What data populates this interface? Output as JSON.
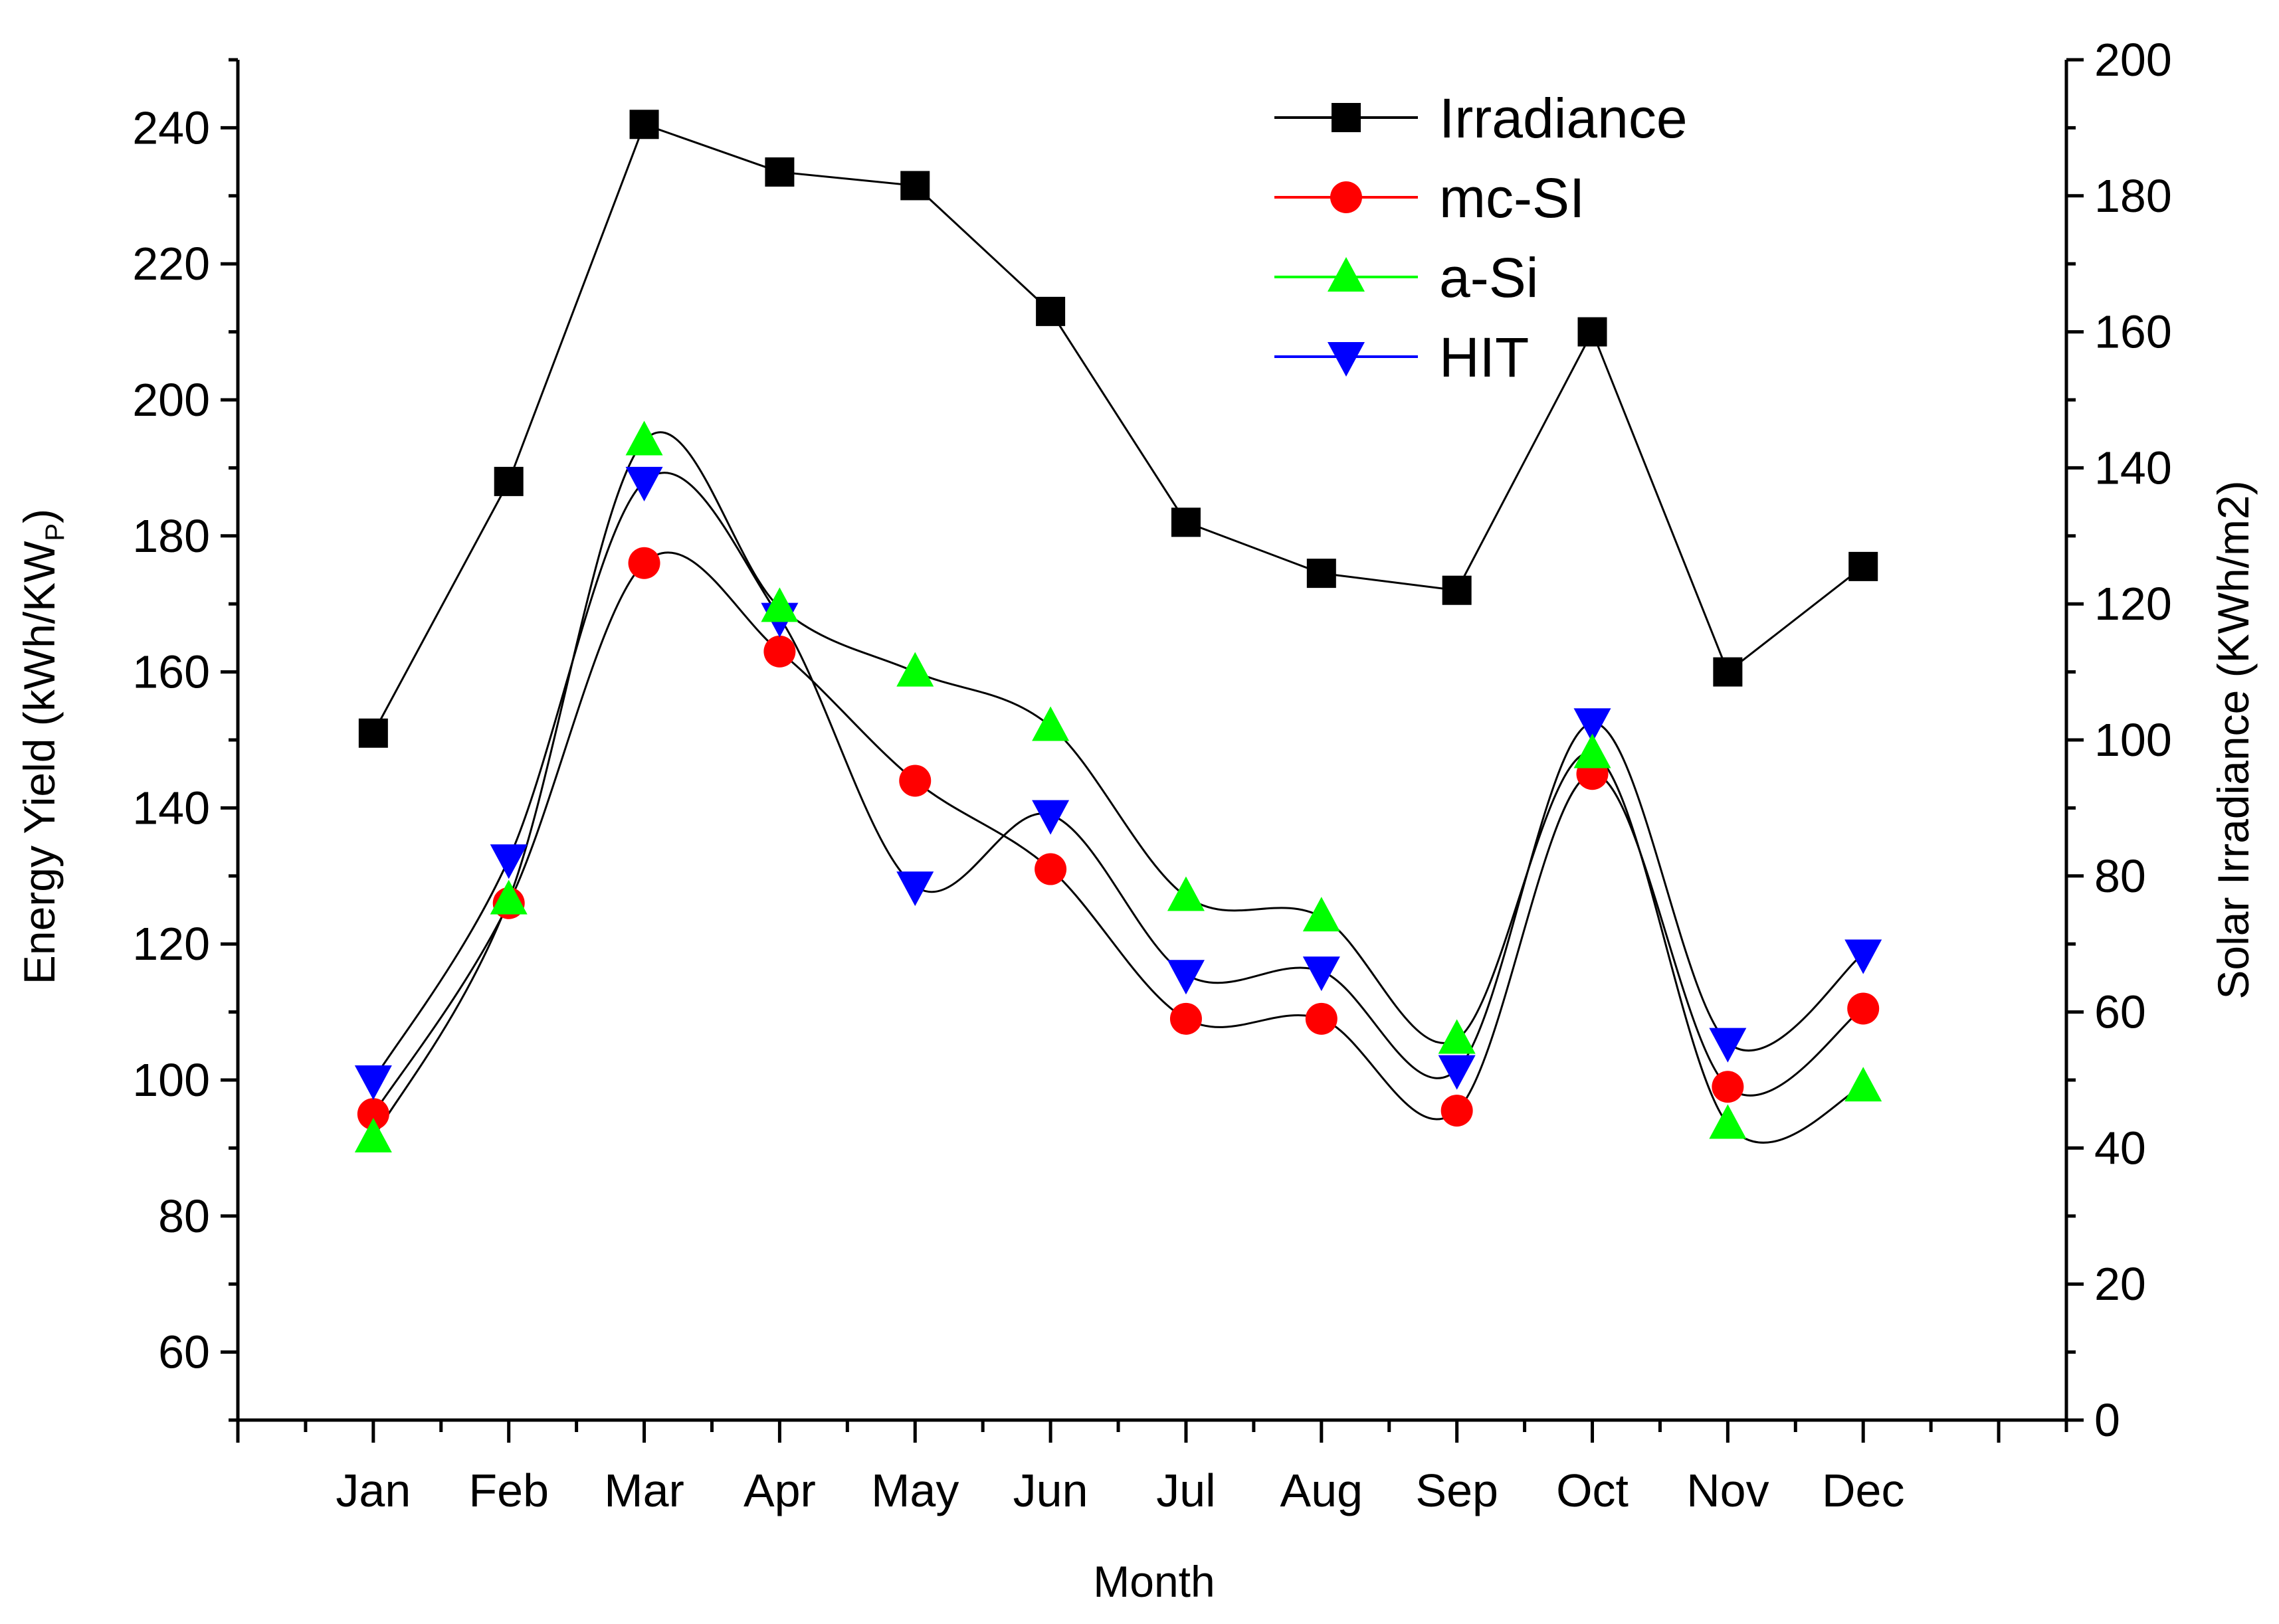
{
  "chart_data": {
    "type": "line",
    "title": "",
    "xlabel": "Month",
    "ylabel": "Energy Yield (kWh/KW",
    "ylabel_subscript": "P",
    "ylabel_close": ")",
    "y2label": "Solar Irradiance (KWh/m2)",
    "categories": [
      "Jan",
      "Feb",
      "Mar",
      "Apr",
      "May",
      "Jun",
      "Jul",
      "Aug",
      "Sep",
      "Oct",
      "Nov",
      "Dec"
    ],
    "ylim": [
      50,
      250
    ],
    "y2lim": [
      0,
      200
    ],
    "yticks": [
      60,
      80,
      100,
      120,
      140,
      160,
      180,
      200,
      220,
      240
    ],
    "y2ticks": [
      0,
      20,
      40,
      60,
      80,
      100,
      120,
      140,
      160,
      180,
      200
    ],
    "series": [
      {
        "name": "Irradiance",
        "axis": "right",
        "marker": "square",
        "color": "#000000",
        "curve": "straight",
        "values": [
          101,
          138,
          190.5,
          183.5,
          181.5,
          163,
          132,
          124.5,
          122,
          160,
          110,
          125.5
        ]
      },
      {
        "name": "mc-SI",
        "axis": "left",
        "marker": "circle",
        "color": "#ff0000",
        "curve": "smooth",
        "values": [
          95,
          126,
          176,
          163,
          144,
          131,
          109,
          109,
          95.5,
          145,
          99,
          110.5
        ]
      },
      {
        "name": "a-Si",
        "axis": "left",
        "marker": "triangle-up",
        "color": "#00ff00",
        "curve": "smooth",
        "values": [
          91.5,
          126.5,
          194,
          169.5,
          160,
          152,
          127,
          124,
          106,
          148,
          93.5,
          99
        ]
      },
      {
        "name": "HIT",
        "axis": "left",
        "marker": "triangle-down",
        "color": "#0000ff",
        "curve": "smooth",
        "values": [
          100,
          132.5,
          188,
          168,
          128.5,
          139,
          115.5,
          116,
          101.5,
          152.5,
          105.5,
          118.5
        ]
      }
    ],
    "legend": {
      "position": "top-right",
      "entries": [
        "Irradiance",
        "mc-SI",
        "a-Si",
        "HIT"
      ]
    }
  }
}
